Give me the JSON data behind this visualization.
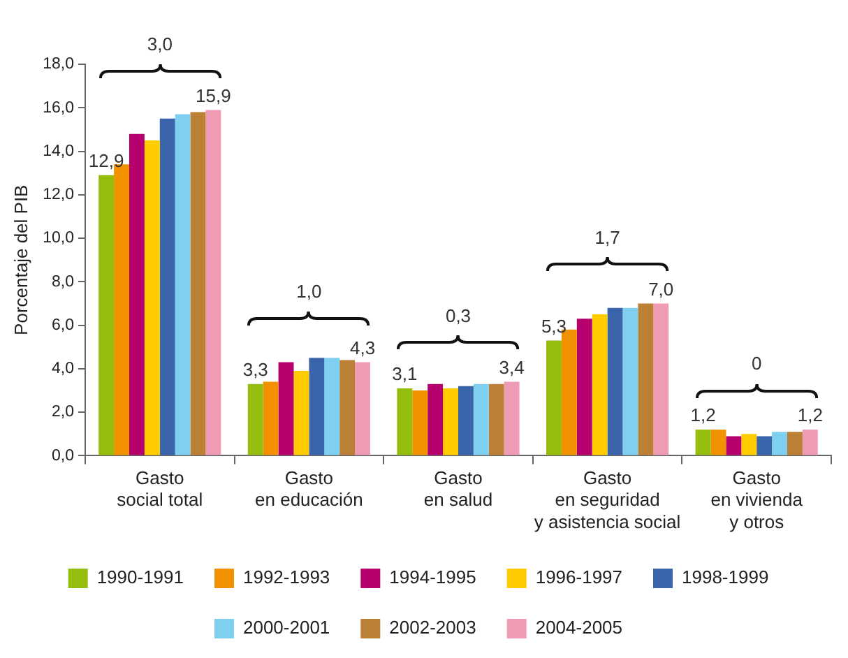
{
  "chart_data": {
    "type": "bar",
    "ylabel": "Porcentaje del PIB",
    "categories": [
      "Gasto\nsocial total",
      "Gasto\nen educación",
      "Gasto\nen salud",
      "Gasto\nen seguridad\ny asistencia social",
      "Gasto\nen vivienda\ny otros"
    ],
    "series": [
      {
        "name": "1990-1991",
        "color": "#95bd0d",
        "values": [
          12.9,
          3.3,
          3.1,
          5.3,
          1.2
        ],
        "value_labels": [
          "12,9",
          "3,3",
          "3,1",
          "5,3",
          "1,2"
        ]
      },
      {
        "name": "1992-1993",
        "color": "#f39200",
        "values": [
          13.4,
          3.4,
          3.0,
          5.8,
          1.2
        ]
      },
      {
        "name": "1994-1995",
        "color": "#b5006e",
        "values": [
          14.8,
          4.3,
          3.3,
          6.3,
          0.9
        ]
      },
      {
        "name": "1996-1997",
        "color": "#ffcc00",
        "values": [
          14.5,
          3.9,
          3.1,
          6.5,
          1.0
        ]
      },
      {
        "name": "1998-1999",
        "color": "#3a65ab",
        "values": [
          15.5,
          4.5,
          3.2,
          6.8,
          0.9
        ]
      },
      {
        "name": "2000-2001",
        "color": "#7fcff0",
        "values": [
          15.7,
          4.5,
          3.3,
          6.8,
          1.1
        ]
      },
      {
        "name": "2002-2003",
        "color": "#bb7f35",
        "values": [
          15.8,
          4.4,
          3.3,
          7.0,
          1.1
        ]
      },
      {
        "name": "2004-2005",
        "color": "#f09bb4",
        "values": [
          15.9,
          4.3,
          3.4,
          7.0,
          1.2
        ],
        "value_labels": [
          "15,9",
          "4,3",
          "3,4",
          "7,0",
          "1,2"
        ]
      }
    ],
    "ylim": [
      0,
      18
    ],
    "yticks": [
      {
        "value": 0,
        "label": "0,0"
      },
      {
        "value": 2,
        "label": "2,0"
      },
      {
        "value": 4,
        "label": "4,0"
      },
      {
        "value": 6,
        "label": "6,0"
      },
      {
        "value": 8,
        "label": "8,0"
      },
      {
        "value": 10,
        "label": "10,0"
      },
      {
        "value": 12,
        "label": "12,0"
      },
      {
        "value": 14,
        "label": "14,0"
      },
      {
        "value": 16,
        "label": "16,0"
      },
      {
        "value": 18,
        "label": "18,0"
      }
    ],
    "annotations": [
      "3,0",
      "1,0",
      "0,3",
      "1,7",
      "0"
    ],
    "grid": false,
    "legend": "bottom"
  }
}
